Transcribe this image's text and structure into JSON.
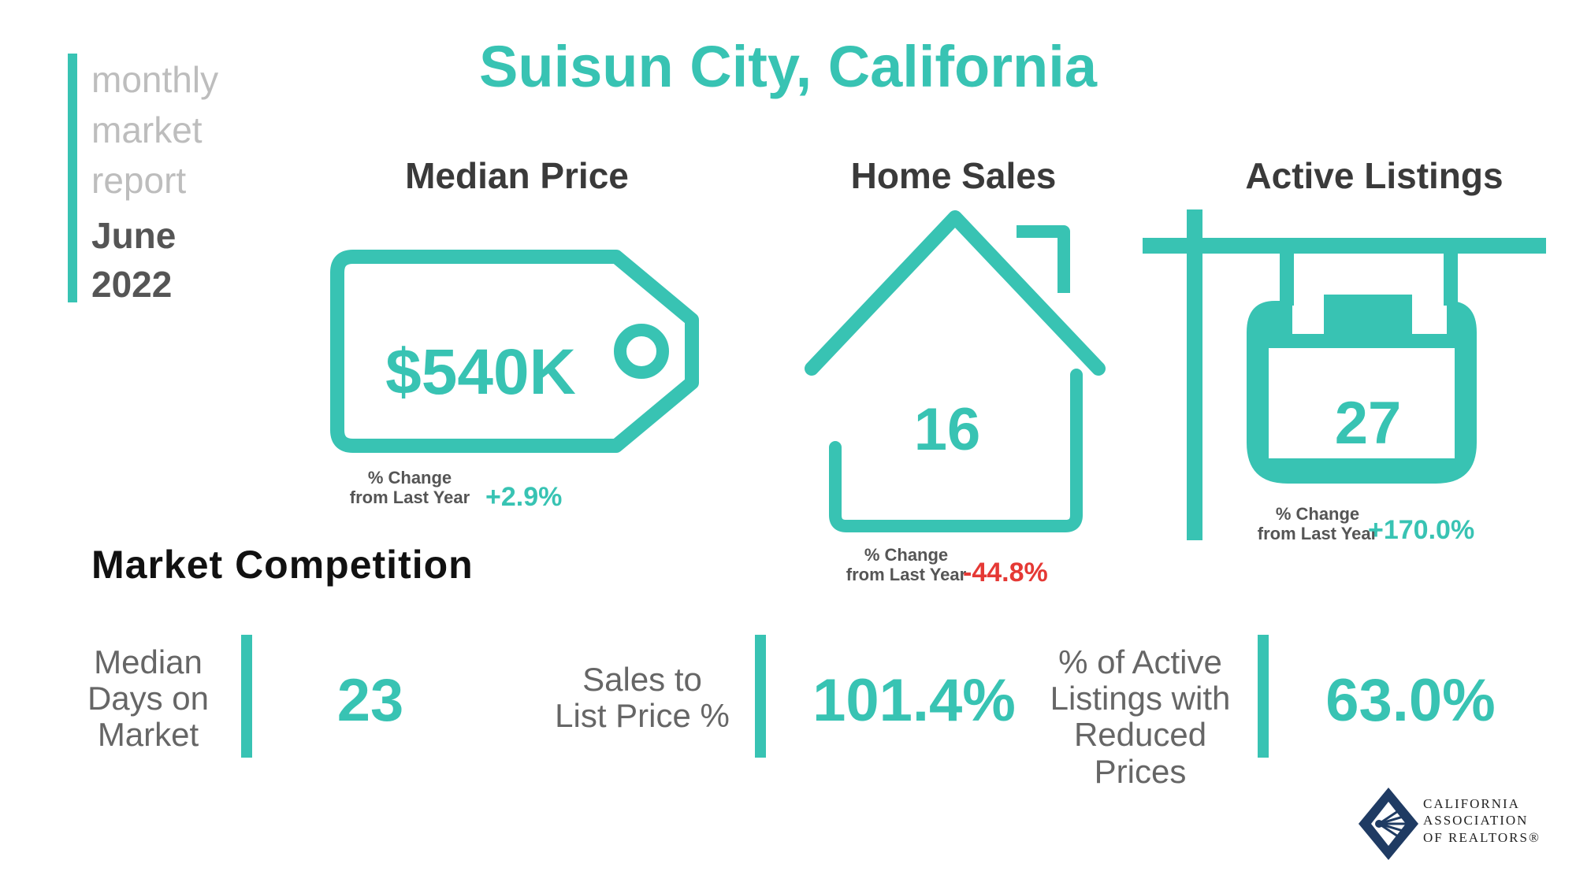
{
  "report": {
    "lines": [
      "monthly",
      "market",
      "report"
    ],
    "month": "June",
    "year": "2022"
  },
  "title": "Suisun City, California",
  "metrics": {
    "median_price": {
      "title": "Median Price",
      "value": "$540K",
      "change_label_1": "% Change",
      "change_label_2": "from Last Year",
      "change": "+2.9%"
    },
    "home_sales": {
      "title": "Home Sales",
      "value": "16",
      "change_label_1": "% Change",
      "change_label_2": "from Last Year",
      "change": "-44.8%"
    },
    "active_listings": {
      "title": "Active Listings",
      "value": "27",
      "change_label_1": "% Change",
      "change_label_2": "from Last Year",
      "change": "+170.0%"
    }
  },
  "competition": {
    "title": "Market Competition",
    "items": [
      {
        "label_lines": [
          "Median",
          "Days on",
          "Market"
        ],
        "value": "23"
      },
      {
        "label_lines": [
          "Sales to",
          "List Price %"
        ],
        "value": "101.4%"
      },
      {
        "label_lines": [
          "% of Active",
          "Listings with",
          "Reduced Prices"
        ],
        "value": "63.0%"
      }
    ]
  },
  "logo": {
    "lines": [
      "CALIFORNIA",
      "ASSOCIATION",
      "OF REALTORS®"
    ]
  },
  "colors": {
    "accent": "#38c3b3",
    "negative": "#e53935",
    "positive": "#38c3b3",
    "logo_navy": "#1f3b63"
  },
  "icons": [
    "price-tag-icon",
    "house-icon",
    "sale-sign-icon",
    "car-logo-icon"
  ]
}
